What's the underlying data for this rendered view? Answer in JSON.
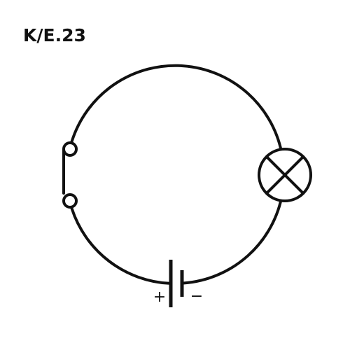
{
  "diagram": {
    "title": "K/E.23",
    "battery": {
      "positive_label": "+",
      "negative_label": "−"
    },
    "components": {
      "switch_icon": "open-switch-icon",
      "lamp_icon": "lamp-icon",
      "battery_icon": "battery-icon"
    },
    "colors": {
      "stroke": "#111111",
      "background": "#ffffff"
    }
  }
}
